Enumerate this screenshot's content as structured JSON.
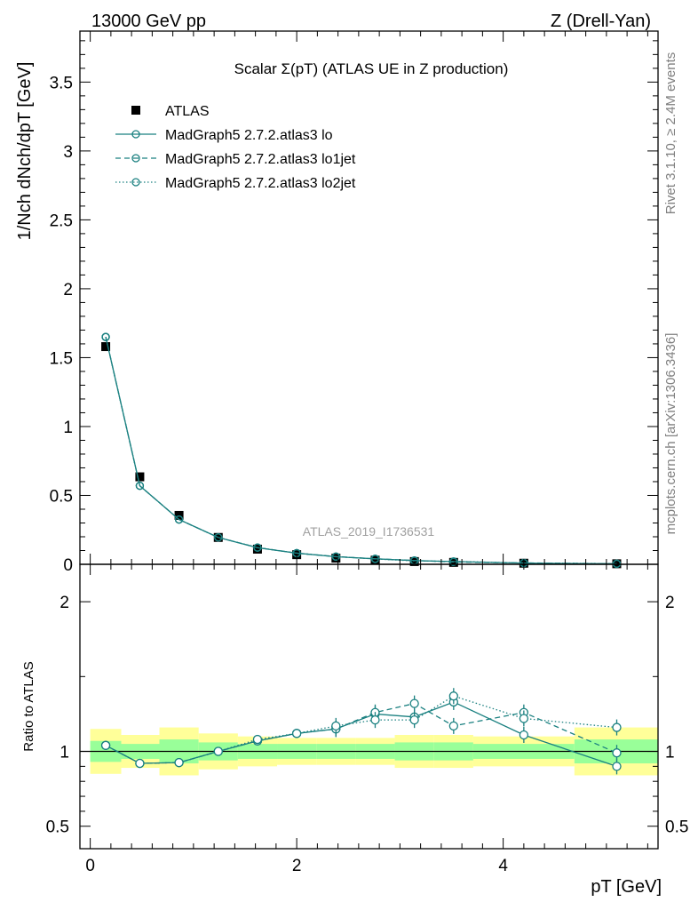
{
  "header": {
    "energy": "13000 GeV pp",
    "process": "Z (Drell-Yan)"
  },
  "side": {
    "rivet": "Rivet 3.1.10, ≥ 2.4M events",
    "mcplots": "mcplots.cern.ch [arXiv:1306.3436]"
  },
  "colors": {
    "mc": "#1a8080",
    "data": "#000000",
    "band_inner": "#99ff99",
    "band_outer": "#ffff99"
  },
  "chart_data": [
    {
      "type": "scatter",
      "title": "Scalar Σ(pT) (ATLAS UE in Z production)",
      "watermark": "ATLAS_2019_I1736531",
      "ylabel": "1/Nch dNch/dpT [GeV]",
      "xlabel": "",
      "xlim": [
        -0.1,
        5.5
      ],
      "ylim": [
        0,
        3.87
      ],
      "yticks": [
        "0",
        "0.5",
        "1",
        "1.5",
        "2",
        "2.5",
        "3",
        "3.5"
      ],
      "legend": [
        "ATLAS",
        "MadGraph5 2.7.2.atlas3 lo",
        "MadGraph5 2.7.2.atlas3 lo1jet",
        "MadGraph5 2.7.2.atlas3 lo2jet"
      ],
      "x": [
        0.15,
        0.48,
        0.86,
        1.24,
        1.62,
        2.0,
        2.38,
        2.76,
        3.14,
        3.52,
        4.2,
        5.1
      ],
      "series": [
        {
          "name": "ATLAS",
          "style": "data",
          "values": [
            1.58,
            0.635,
            0.355,
            0.195,
            0.11,
            0.07,
            0.045,
            0.03,
            0.02,
            0.014,
            0.008,
            0.004
          ]
        },
        {
          "name": "MadGraph5 2.7.2.atlas3 lo",
          "style": "solid",
          "values": [
            1.65,
            0.57,
            0.325,
            0.195,
            0.12,
            0.081,
            0.055,
            0.04,
            0.027,
            0.02,
            0.009,
            0.0036
          ]
        },
        {
          "name": "MadGraph5 2.7.2.atlas3 lo1jet",
          "style": "dashed",
          "values": [
            1.65,
            0.57,
            0.325,
            0.195,
            0.121,
            0.081,
            0.056,
            0.04,
            0.028,
            0.017,
            0.01,
            0.004
          ]
        },
        {
          "name": "MadGraph5 2.7.2.atlas3 lo2jet",
          "style": "dotted",
          "values": [
            1.65,
            0.57,
            0.325,
            0.195,
            0.122,
            0.081,
            0.056,
            0.039,
            0.025,
            0.021,
            0.0095,
            0.0049
          ]
        }
      ]
    },
    {
      "type": "scatter",
      "title": "",
      "ylabel": "Ratio to ATLAS",
      "xlabel": "pT [GeV]",
      "xlim": [
        -0.1,
        5.5
      ],
      "ylim": [
        0.35,
        2.25
      ],
      "xticks": [
        "0",
        "2",
        "4"
      ],
      "yticks": [
        "0.5",
        "1",
        "2"
      ],
      "x": [
        0.15,
        0.48,
        0.86,
        1.24,
        1.62,
        2.0,
        2.38,
        2.76,
        3.14,
        3.52,
        4.2,
        5.1
      ],
      "bands": [
        {
          "x0": 0.0,
          "x1": 0.3,
          "inner": [
            0.93,
            1.07
          ],
          "outer": [
            0.85,
            1.15
          ]
        },
        {
          "x0": 0.3,
          "x1": 0.67,
          "inner": [
            0.95,
            1.05
          ],
          "outer": [
            0.89,
            1.11
          ]
        },
        {
          "x0": 0.67,
          "x1": 1.05,
          "inner": [
            0.92,
            1.08
          ],
          "outer": [
            0.84,
            1.16
          ]
        },
        {
          "x0": 1.05,
          "x1": 1.43,
          "inner": [
            0.94,
            1.06
          ],
          "outer": [
            0.88,
            1.12
          ]
        },
        {
          "x0": 1.43,
          "x1": 1.81,
          "inner": [
            0.95,
            1.05
          ],
          "outer": [
            0.9,
            1.1
          ]
        },
        {
          "x0": 1.81,
          "x1": 2.19,
          "inner": [
            0.95,
            1.05
          ],
          "outer": [
            0.91,
            1.09
          ]
        },
        {
          "x0": 2.19,
          "x1": 2.57,
          "inner": [
            0.95,
            1.05
          ],
          "outer": [
            0.91,
            1.09
          ]
        },
        {
          "x0": 2.57,
          "x1": 2.95,
          "inner": [
            0.95,
            1.05
          ],
          "outer": [
            0.91,
            1.09
          ]
        },
        {
          "x0": 2.95,
          "x1": 3.33,
          "inner": [
            0.94,
            1.06
          ],
          "outer": [
            0.89,
            1.11
          ]
        },
        {
          "x0": 3.33,
          "x1": 3.71,
          "inner": [
            0.94,
            1.06
          ],
          "outer": [
            0.89,
            1.11
          ]
        },
        {
          "x0": 3.71,
          "x1": 4.69,
          "inner": [
            0.95,
            1.05
          ],
          "outer": [
            0.9,
            1.1
          ]
        },
        {
          "x0": 4.69,
          "x1": 5.5,
          "inner": [
            0.92,
            1.08
          ],
          "outer": [
            0.84,
            1.16
          ]
        }
      ],
      "series": [
        {
          "name": "MadGraph5 2.7.2.atlas3 lo",
          "style": "solid",
          "values": [
            1.04,
            0.92,
            0.925,
            1.0,
            1.07,
            1.12,
            1.15,
            1.25,
            1.23,
            1.33,
            1.11,
            0.9
          ]
        },
        {
          "name": "MadGraph5 2.7.2.atlas3 lo1jet",
          "style": "dashed",
          "values": [
            1.04,
            0.92,
            0.925,
            1.0,
            1.07,
            1.12,
            1.15,
            1.26,
            1.32,
            1.17,
            1.26,
            0.99
          ]
        },
        {
          "name": "MadGraph5 2.7.2.atlas3 lo2jet",
          "style": "dotted",
          "values": [
            1.04,
            0.92,
            0.925,
            1.0,
            1.08,
            1.12,
            1.17,
            1.21,
            1.21,
            1.37,
            1.22,
            1.16
          ]
        }
      ]
    }
  ]
}
